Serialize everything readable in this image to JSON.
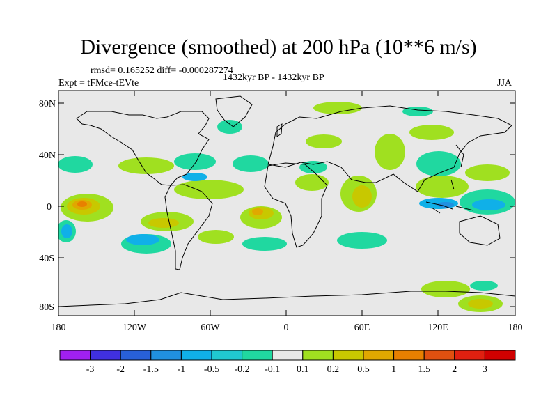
{
  "title": "Divergence (smoothed) at 200 hPa (10**6 m/s)",
  "stats": "rmsd= 0.165252 diff= -0.000287274",
  "period": "1432kyr BP - 1432kyr BP",
  "experiment": "Expt = tFMce-tEVte",
  "season": "JJA",
  "y_axis_labels": [
    "80N",
    "40N",
    "0",
    "40S",
    "80S"
  ],
  "x_axis_labels": [
    "180",
    "120W",
    "60W",
    "0",
    "60E",
    "120E",
    "180"
  ],
  "colorbar": {
    "labels": [
      "-3",
      "-2",
      "-1.5",
      "-1",
      "-0.5",
      "-0.2",
      "-0.1",
      "0.1",
      "0.2",
      "0.5",
      "1",
      "1.5",
      "2",
      "3"
    ],
    "colors": [
      "#a020f0",
      "#4030e0",
      "#2860d8",
      "#2090e0",
      "#10b0e8",
      "#20c8d0",
      "#20d8a0",
      "#e8e8e8",
      "#a0e020",
      "#c8c800",
      "#e0a800",
      "#e88000",
      "#e05010",
      "#e02010",
      "#d00000"
    ]
  },
  "colors": {
    "background": "#e8e8e8",
    "coast": "#000000"
  }
}
